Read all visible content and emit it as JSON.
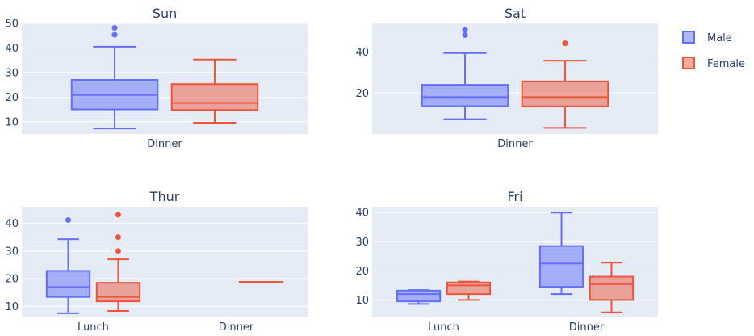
{
  "legend": [
    {
      "name": "Male",
      "color": "#636efa"
    },
    {
      "name": "Female",
      "color": "#ef553b"
    }
  ],
  "chart_data": [
    {
      "type": "box",
      "title": "Sun",
      "categories": [
        "Dinner"
      ],
      "ylim": [
        5,
        50
      ],
      "yticks": [
        10,
        20,
        30,
        40,
        50
      ],
      "series": [
        {
          "name": "Male",
          "boxes": [
            {
              "category": "Dinner",
              "min": 7.25,
              "q1": 15,
              "median": 20.9,
              "q3": 27,
              "max": 40.5,
              "outliers": [
                45.35,
                48.2
              ]
            }
          ]
        },
        {
          "name": "Female",
          "boxes": [
            {
              "category": "Dinner",
              "min": 9.6,
              "q1": 14.8,
              "median": 17.6,
              "q3": 25.3,
              "max": 35.3,
              "outliers": []
            }
          ]
        }
      ]
    },
    {
      "type": "box",
      "title": "Sat",
      "categories": [
        "Dinner"
      ],
      "ylim": [
        0,
        54
      ],
      "yticks": [
        20,
        40
      ],
      "series": [
        {
          "name": "Male",
          "boxes": [
            {
              "category": "Dinner",
              "min": 7.25,
              "q1": 13.6,
              "median": 18,
              "q3": 24,
              "max": 39.5,
              "outliers": [
                48.3,
                50.8
              ]
            }
          ]
        },
        {
          "name": "Female",
          "boxes": [
            {
              "category": "Dinner",
              "min": 3,
              "q1": 13.5,
              "median": 18,
              "q3": 25.7,
              "max": 35.8,
              "outliers": [
                44.3
              ]
            }
          ]
        }
      ]
    },
    {
      "type": "box",
      "title": "Thur",
      "categories": [
        "Lunch",
        "Dinner"
      ],
      "ylim": [
        6,
        46
      ],
      "yticks": [
        10,
        20,
        30,
        40
      ],
      "series": [
        {
          "name": "Male",
          "boxes": [
            {
              "category": "Lunch",
              "min": 7.5,
              "q1": 13.4,
              "median": 17,
              "q3": 22.8,
              "max": 34.3,
              "outliers": [
                41.2
              ]
            }
          ]
        },
        {
          "name": "Female",
          "boxes": [
            {
              "category": "Lunch",
              "min": 8.35,
              "q1": 11.8,
              "median": 13.4,
              "q3": 18.5,
              "max": 27,
              "outliers": [
                30,
                35,
                43.1
              ]
            },
            {
              "category": "Dinner",
              "min": 18.8,
              "q1": 18.8,
              "median": 18.8,
              "q3": 18.8,
              "max": 18.8,
              "outliers": []
            }
          ]
        }
      ]
    },
    {
      "type": "box",
      "title": "Fri",
      "categories": [
        "Lunch",
        "Dinner"
      ],
      "ylim": [
        4,
        42
      ],
      "yticks": [
        10,
        20,
        30,
        40
      ],
      "series": [
        {
          "name": "Male",
          "boxes": [
            {
              "category": "Lunch",
              "min": 8.6,
              "q1": 9.5,
              "median": 12,
              "q3": 13.2,
              "max": 13.4,
              "outliers": []
            },
            {
              "category": "Dinner",
              "min": 12,
              "q1": 14.5,
              "median": 22.5,
              "q3": 28.5,
              "max": 40,
              "outliers": []
            }
          ]
        },
        {
          "name": "Female",
          "boxes": [
            {
              "category": "Lunch",
              "min": 10,
              "q1": 12,
              "median": 15,
              "q3": 16,
              "max": 16.3,
              "outliers": []
            },
            {
              "category": "Dinner",
              "min": 5.75,
              "q1": 10,
              "median": 15.4,
              "q3": 18,
              "max": 22.8,
              "outliers": []
            }
          ]
        }
      ]
    }
  ]
}
